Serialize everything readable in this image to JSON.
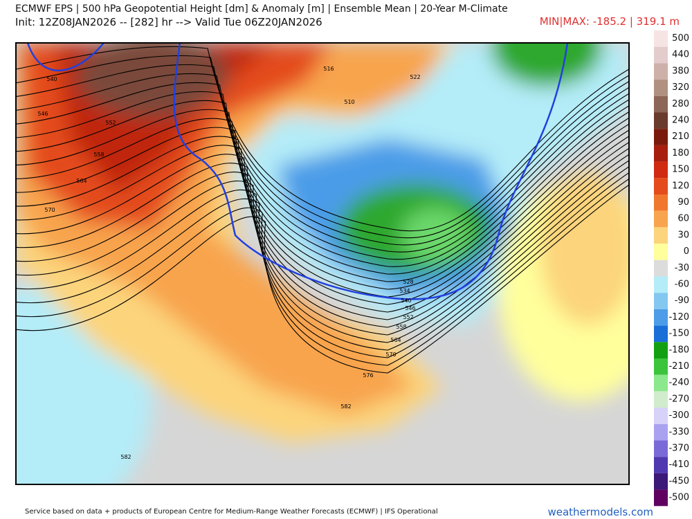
{
  "header": {
    "title": "ECMWF EPS | 500 hPa Geopotential Height [dm] & Anomaly [m] | Ensemble Mean | 20-Year M-Climate",
    "subtitle": "Init: 12Z08JAN2026 -- [282] hr --> Valid Tue 06Z20JAN2026",
    "minmax": "MIN|MAX: -185.2 | 319.1 m"
  },
  "colorbar": {
    "labels": [
      500,
      440,
      380,
      320,
      280,
      240,
      210,
      180,
      150,
      120,
      90,
      60,
      30,
      0,
      -30,
      -60,
      -90,
      -120,
      -150,
      -180,
      -210,
      -240,
      -270,
      -300,
      -330,
      -370,
      -410,
      -450,
      -500
    ],
    "colors": [
      "#f6e4e4",
      "#e4cccc",
      "#cfb0a8",
      "#b09080",
      "#8c6656",
      "#6a3c2c",
      "#7a1a0c",
      "#a81e0e",
      "#d02a10",
      "#e44c1c",
      "#f0782e",
      "#f8a44e",
      "#fcd47c",
      "#ffff9c",
      "#dcdcdc",
      "#b4ecf8",
      "#84c8f0",
      "#4c9ce8",
      "#1a6ed8",
      "#12a012",
      "#3cc43c",
      "#8ce88c",
      "#d0eccc",
      "#d6d2f8",
      "#aaa2f0",
      "#7a6ad8",
      "#5038b0",
      "#3c1878",
      "#600060"
    ]
  },
  "map": {
    "contour_labels": [
      "540",
      "546",
      "552",
      "558",
      "564",
      "570",
      "516",
      "522",
      "510",
      "528",
      "534",
      "540",
      "546",
      "552",
      "558",
      "564",
      "570",
      "576",
      "582",
      "582"
    ]
  },
  "footer": "Service based on data + products of European Centre for Medium-Range Weather Forecasts (ECMWF) | IFS Operational",
  "logo": "weathermodels.com"
}
